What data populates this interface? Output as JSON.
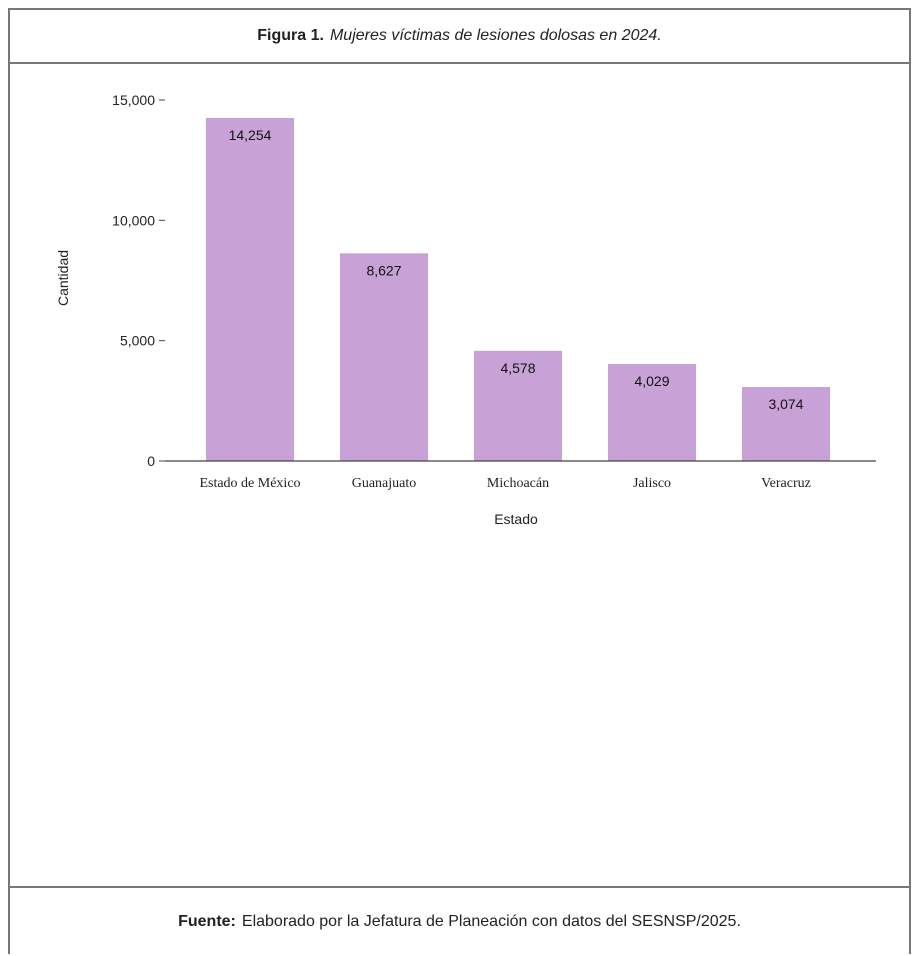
{
  "figure": {
    "label": "Figura 1.",
    "caption": "Mujeres víctimas de lesiones dolosas en 2024."
  },
  "source": {
    "label": "Fuente:",
    "text": "Elaborado por la Jefatura de Planeación con datos del SESNSP/2025."
  },
  "chart_data": {
    "type": "bar",
    "categories": [
      "Estado de México",
      "Guanajuato",
      "Michoacán",
      "Jalisco",
      "Veracruz"
    ],
    "values": [
      14254,
      8627,
      4578,
      4029,
      3074
    ],
    "data_labels": [
      "14,254",
      "8,627",
      "4,578",
      "4,029",
      "3,074"
    ],
    "xlabel": "Estado",
    "ylabel": "Cantidad",
    "ylim": [
      0,
      15000
    ],
    "yticks": [
      0,
      5000,
      10000,
      15000
    ],
    "ytick_labels": [
      "0",
      "5,000",
      "10,000",
      "15,000"
    ],
    "grid": false,
    "legend": "none",
    "bar_color": "#c8a2d6"
  }
}
